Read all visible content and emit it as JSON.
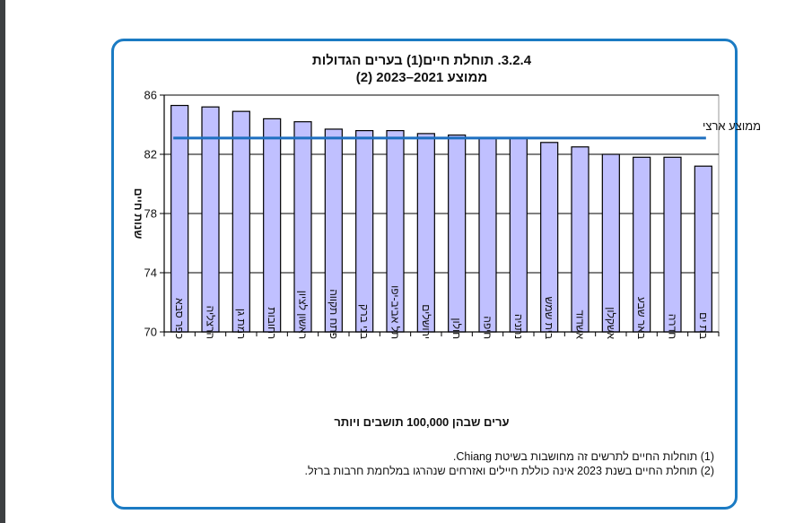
{
  "chart_data": {
    "type": "bar",
    "title": "3.2.4. תוחלת חיים(1) בערים הגדולות",
    "subtitle": "ממוצע 2021–2023 (2)",
    "xlabel": "ערים שבהן 100,000 תושבים ויותר",
    "ylabel": "שנות חיים",
    "ylim": [
      70,
      86
    ],
    "yticks": [
      70,
      74,
      78,
      82,
      86
    ],
    "grid": true,
    "categories": [
      "כפר סבא",
      "הרצליה",
      "רמת גן",
      "רחובות",
      "ראשון לציון",
      "פתח תקווה",
      "בני ברק",
      "תל אביב-יפו",
      "ירושלים",
      "חולון",
      "חיפה",
      "נתניה",
      "בית שמש",
      "אשדוד",
      "אשקלון",
      "באר שבע",
      "חדרה",
      "בת ים"
    ],
    "series": [
      {
        "name": "תוחלת חיים",
        "type": "bar",
        "color": "#c0c0ff",
        "values": [
          85.3,
          85.2,
          84.9,
          84.4,
          84.2,
          83.7,
          83.6,
          83.6,
          83.4,
          83.3,
          83.1,
          83.1,
          82.8,
          82.5,
          82.0,
          81.8,
          81.8,
          81.2
        ]
      },
      {
        "name": "ממוצע ארצי",
        "type": "line",
        "color": "#1e6fc0",
        "value": 83.1
      }
    ],
    "legend": {
      "label": "ממוצע ארצי",
      "placement": "top-right"
    }
  },
  "footnotes": [
    "(1) תוחלות החיים לתרשים זה מחושבות בשיטת Chiang.",
    "(2) תוחלת החיים בשנת 2023 אינה כוללת חיילים ואזרחים שנהרגו במלחמת חרבות ברזל."
  ],
  "colors": {
    "frame": "#1b7bc3",
    "bar": "#c0c0ff",
    "average_line": "#1e6fc0"
  }
}
